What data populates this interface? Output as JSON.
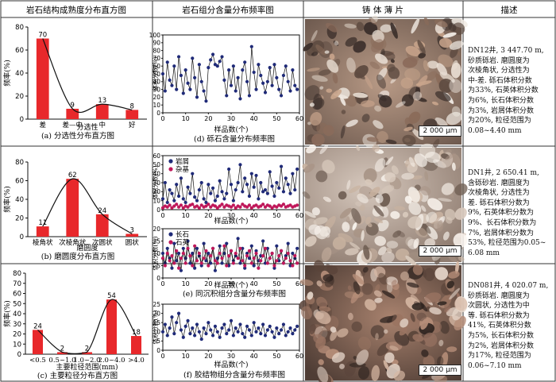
{
  "headers": {
    "col1": "岩石结构成熟度分布直方图",
    "col2": "岩石组分含量分布频率图",
    "col3": "铸 体 薄 片",
    "col4": "描述"
  },
  "chart_data": [
    {
      "id": "a",
      "type": "bar",
      "title": "(a) 分选性分布直方图",
      "xlabel": "分选性",
      "ylabel": "频率(%)",
      "categories": [
        "差",
        "差—中",
        "中",
        "好"
      ],
      "values": [
        70,
        9,
        13,
        8
      ],
      "value_labels": [
        "70",
        "9",
        "13",
        "8"
      ],
      "ylim": [
        0,
        80
      ],
      "yticks": [
        0,
        20,
        40,
        60,
        80
      ],
      "trend_curve": true,
      "color": "#e8282b"
    },
    {
      "id": "b",
      "type": "bar",
      "title": "(b) 磨圆度分布直方图",
      "xlabel": "磨圆度",
      "ylabel": "频率(%)",
      "categories": [
        "棱角状",
        "次棱角状",
        "次圆状",
        "圆状"
      ],
      "values": [
        11,
        62,
        24,
        3
      ],
      "value_labels": [
        "11",
        "62",
        "24",
        "3"
      ],
      "ylim": [
        0,
        80
      ],
      "yticks": [
        0,
        20,
        40,
        60,
        80
      ],
      "trend_curve": true,
      "color": "#e8282b"
    },
    {
      "id": "c",
      "type": "bar",
      "title": "(c) 主要粒径分布直方图",
      "xlabel": "主要粒径范围(mm)",
      "ylabel": "频率(%)",
      "categories": [
        "<0.5",
        "0.5~1.0",
        "1.0~2.0",
        "2.0~4.0",
        ">4.0"
      ],
      "values": [
        24,
        2,
        2,
        54,
        18
      ],
      "value_labels": [
        "24",
        "2",
        "2",
        "54",
        "18"
      ],
      "ylim": [
        0,
        80
      ],
      "yticks": [
        0,
        10,
        20,
        30,
        40,
        50,
        60,
        70,
        80
      ],
      "trend_curve": true,
      "color": "#e8282b"
    },
    {
      "id": "d",
      "type": "line",
      "title": "(d) 砾石含量分布频率图",
      "xlabel": "样品数(个)",
      "ylabel": "体积分数(%)",
      "xlim": [
        0,
        60
      ],
      "xticks": [
        0,
        10,
        20,
        30,
        40,
        50,
        60
      ],
      "ylim": [
        0,
        100
      ],
      "yticks": [
        0,
        10,
        20,
        30,
        40,
        50,
        60,
        70,
        80,
        90,
        100
      ],
      "series": [
        {
          "name": "",
          "color": "#1f2a78",
          "values": [
            50,
            28,
            65,
            42,
            35,
            60,
            30,
            72,
            48,
            25,
            55,
            38,
            30,
            70,
            45,
            20,
            62,
            40,
            28,
            15,
            58,
            68,
            75,
            62,
            60,
            66,
            72,
            42,
            22,
            55,
            35,
            60,
            28,
            45,
            18,
            55,
            65,
            40,
            22,
            85,
            52,
            30,
            62,
            48,
            38,
            26,
            40,
            58,
            35,
            62,
            45,
            30,
            22,
            48,
            60,
            40,
            28,
            55,
            35,
            30
          ]
        }
      ]
    },
    {
      "id": "e1",
      "type": "line",
      "xlabel": "样品数(个)",
      "ylabel": "体积分数(%)",
      "xlim": [
        0,
        60
      ],
      "xticks": [
        0,
        10,
        20,
        30,
        40,
        50,
        60
      ],
      "ylim": [
        0,
        60
      ],
      "yticks": [
        0,
        10,
        20,
        30,
        40,
        50,
        60
      ],
      "legend": "top-left",
      "series": [
        {
          "name": "岩屑",
          "color": "#1f2a78",
          "values": [
            12,
            30,
            8,
            22,
            18,
            10,
            28,
            15,
            35,
            12,
            8,
            25,
            18,
            40,
            14,
            10,
            22,
            30,
            12,
            8,
            28,
            18,
            24,
            10,
            15,
            32,
            20,
            12,
            18,
            45,
            28,
            10,
            22,
            30,
            50,
            20,
            35,
            28,
            15,
            40,
            25,
            38,
            12,
            30,
            20,
            22,
            18,
            42,
            26,
            15,
            30,
            24,
            48,
            20,
            35,
            28,
            18,
            40,
            22,
            45
          ]
        },
        {
          "name": "杂基",
          "color": "#c0185a",
          "values": [
            2,
            4,
            3,
            5,
            2,
            4,
            6,
            3,
            5,
            2,
            4,
            3,
            5,
            6,
            3,
            4,
            2,
            5,
            3,
            4,
            6,
            3,
            5,
            4,
            2,
            4,
            6,
            3,
            5,
            4,
            3,
            5,
            2,
            4,
            3,
            6,
            4,
            3,
            5,
            2,
            4,
            5,
            3,
            4,
            6,
            3,
            5,
            4,
            2,
            4,
            3,
            5,
            4,
            6,
            3,
            4,
            5,
            3,
            4,
            5
          ]
        }
      ]
    },
    {
      "id": "e2",
      "type": "line",
      "title": "(e) 同沉积组分含量分布频率图",
      "xlabel": "样品数(个)",
      "ylabel": "体积分数(%)",
      "xlim": [
        0,
        60
      ],
      "xticks": [
        0,
        10,
        20,
        30,
        40,
        50,
        60
      ],
      "ylim": [
        0,
        20
      ],
      "yticks": [
        0,
        5,
        10,
        15,
        20
      ],
      "legend": "top-left",
      "series": [
        {
          "name": "长石",
          "color": "#1f2a78",
          "values": [
            10,
            6,
            12,
            8,
            4,
            14,
            7,
            10,
            3,
            12,
            8,
            15,
            6,
            10,
            4,
            12,
            9,
            5,
            14,
            7,
            10,
            6,
            12,
            3,
            8,
            13,
            6,
            10,
            14,
            5,
            11,
            7,
            9,
            16,
            6,
            12,
            4,
            10,
            8,
            13,
            5,
            11,
            7,
            9,
            15,
            6,
            12,
            8,
            10,
            4,
            13,
            7,
            11,
            6,
            9,
            14,
            5,
            10,
            8,
            12
          ]
        },
        {
          "name": "石英",
          "color": "#c0185a",
          "values": [
            8,
            5,
            10,
            7,
            9,
            6,
            11,
            4,
            8,
            10,
            6,
            12,
            9,
            5,
            13,
            7,
            10,
            6,
            8,
            11,
            5,
            9,
            12,
            7,
            6,
            10,
            8,
            13,
            5,
            9,
            11,
            6,
            10,
            8,
            12,
            7,
            5,
            9,
            11,
            6,
            8,
            10,
            4,
            7,
            9,
            12,
            6,
            8,
            10,
            5,
            7,
            9,
            11,
            6,
            8,
            10,
            7,
            5,
            9,
            6
          ]
        }
      ]
    },
    {
      "id": "f",
      "type": "line",
      "title": "(f) 胶结物组分含量分布频率图",
      "xlabel": "样品数(个)",
      "ylabel": "体积分数(%)",
      "xlim": [
        0,
        60
      ],
      "xticks": [
        0,
        10,
        20,
        30,
        40,
        50,
        60
      ],
      "ylim": [
        0,
        25
      ],
      "yticks": [
        0,
        5,
        10,
        15,
        20,
        25
      ],
      "series": [
        {
          "name": "",
          "color": "#1f2a78",
          "values": [
            10,
            14,
            8,
            12,
            18,
            9,
            15,
            20,
            11,
            7,
            13,
            16,
            9,
            12,
            8,
            14,
            10,
            6,
            12,
            9,
            15,
            11,
            8,
            13,
            10,
            7,
            12,
            14,
            9,
            11,
            16,
            8,
            12,
            10,
            14,
            9,
            7,
            13,
            11,
            8,
            15,
            10,
            12,
            9,
            14,
            8,
            11,
            13,
            10,
            7,
            12,
            9,
            11,
            14,
            8,
            10,
            12,
            9,
            11,
            13
          ]
        }
      ]
    }
  ],
  "thin_sections": [
    {
      "scale": "2 000 μm"
    },
    {
      "scale": "2 000 μm"
    },
    {
      "scale": "2 000 μm"
    }
  ],
  "descriptions": [
    "DN12井, 3 447.70 m,\n砂质砾岩. 磨圆度为\n次棱角状, 分选性为\n中-差. 砾石体积分数\n为33%, 石英体积分数\n为6%, 长石体积分数\n为3%, 岩屑体积分数\n为20%, 粒径范围为\n0.08~4.40 mm",
    "DN1井, 2 650.41 m,\n含砾砂岩. 磨圆度为\n次棱角状, 分选性为\n差. 砾石体积分数为\n9%, 石英体积分数为\n9%、长石体积分数为\n7%, 岩屑体积分数为\n53%, 粒径范围为0.05~\n6.08 mm",
    "DN081井, 4 020.07 m,\n砂质砾岩. 磨圆度为\n次圆状, 分选性为中\n等. 砾石体积分数为\n41%, 石英体积分数\n为5%, 长石体积分数\n为2%, 岩屑体积分数\n为17%, 粒径范围为\n0.06~7.10 mm"
  ]
}
